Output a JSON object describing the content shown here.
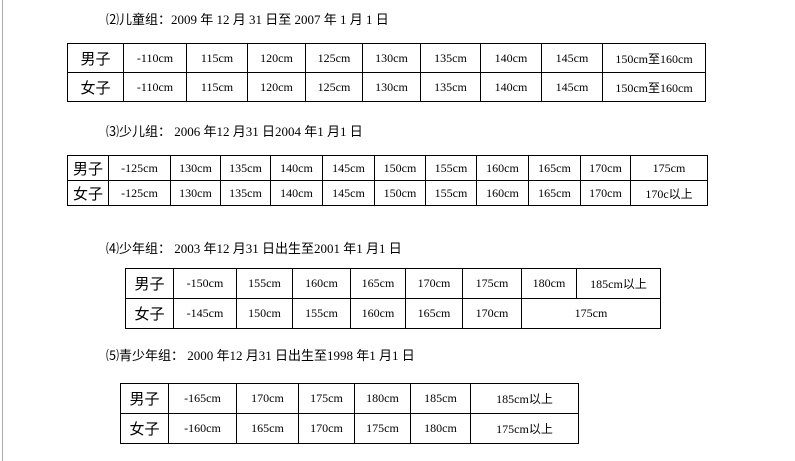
{
  "sections": [
    {
      "heading": "⑵儿童组：2009 年 12 月 31 日至 2007 年 1 月 1 日",
      "rows": [
        [
          "男子",
          "-110cm",
          "115cm",
          "120cm",
          "125cm",
          "130cm",
          "135cm",
          "140cm",
          "145cm",
          "150cm至160cm"
        ],
        [
          "女子",
          "-110cm",
          "115cm",
          "120cm",
          "125cm",
          "130cm",
          "135cm",
          "140cm",
          "145cm",
          "150cm至160cm"
        ]
      ]
    },
    {
      "heading": "⑶少儿组： 2006 年12 月31 日2004 年1 月1 日",
      "rows": [
        [
          "男子",
          "-125cm",
          "130cm",
          "135cm",
          "140cm",
          "145cm",
          "150cm",
          "155cm",
          "160cm",
          "165cm",
          "170cm",
          "175cm"
        ],
        [
          "女子",
          "-125cm",
          "130cm",
          "135cm",
          "140cm",
          "145cm",
          "150cm",
          "155cm",
          "160cm",
          "165cm",
          "170cm",
          "170c以上"
        ]
      ]
    },
    {
      "heading": "⑷少年组： 2003 年12 月31 日出生至2001 年1 月1 日",
      "rows": [
        [
          "男子",
          "-150cm",
          "155cm",
          "160cm",
          "165cm",
          "170cm",
          "175cm",
          "180cm",
          "185cm以上"
        ],
        [
          "女子",
          "-145cm",
          "150cm",
          "155cm",
          "160cm",
          "165cm",
          "170cm",
          "175cm"
        ]
      ]
    },
    {
      "heading": "⑸青少年组： 2000 年12 月31 日出生至1998 年1 月1 日",
      "rows": [
        [
          "男子",
          "-165cm",
          "170cm",
          "175cm",
          "180cm",
          "185cm",
          "185cm以上"
        ],
        [
          "女子",
          "-160cm",
          "165cm",
          "170cm",
          "175cm",
          "180cm",
          "175cm以上"
        ]
      ]
    }
  ]
}
